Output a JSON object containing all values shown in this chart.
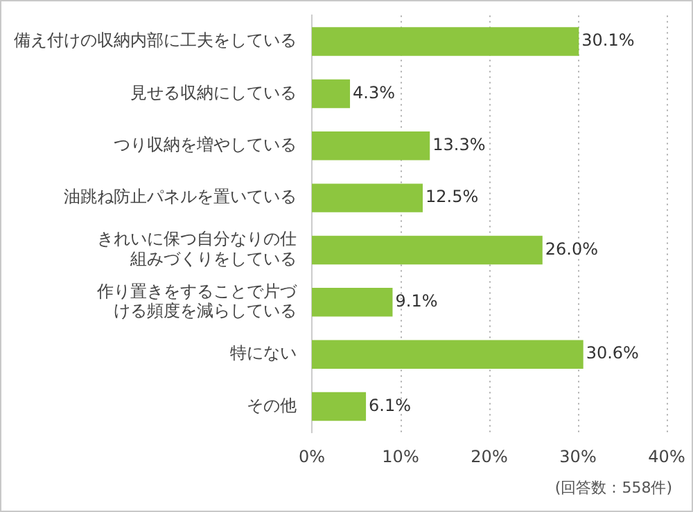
{
  "chart_data": {
    "type": "bar",
    "orientation": "horizontal",
    "categories": [
      "備え付けの収納内部に工夫をしている",
      "見せる収納にしている",
      "つり収納を増やしている",
      "油跳ね防止パネルを置いている",
      "きれいに保つ自分なりの仕組みづくりをしている",
      "作り置きをすることで片づける頻度を減らしている",
      "特にない",
      "その他"
    ],
    "values": [
      30.1,
      4.3,
      13.3,
      12.5,
      26.0,
      9.1,
      30.6,
      6.1
    ],
    "value_labels": [
      "30.1%",
      "4.3%",
      "13.3%",
      "12.5%",
      "26.0%",
      "9.1%",
      "30.6%",
      "6.1%"
    ],
    "color": "#8dc63f",
    "xlim": [
      0,
      40
    ],
    "xticks": [
      {
        "value": 0,
        "label": "0%"
      },
      {
        "value": 10,
        "label": "10%"
      },
      {
        "value": 20,
        "label": "20%"
      },
      {
        "value": 30,
        "label": "30%"
      },
      {
        "value": 40,
        "label": "40%"
      }
    ],
    "grid": "x",
    "legend": false,
    "annotations": [
      "(回答数：558件)"
    ]
  }
}
